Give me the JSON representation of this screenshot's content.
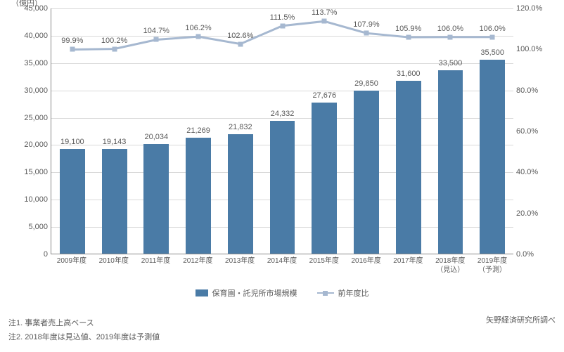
{
  "chart": {
    "type": "bar+line",
    "y_left_title": "（億円）",
    "bar_color": "#4a7ba6",
    "line_color": "#a6b8d0",
    "marker_color": "#a6b8d0",
    "text_color": "#595959",
    "grid_color": "#d9d9d9",
    "background_color": "#ffffff",
    "bar_width": 0.6,
    "label_fontsize": 11,
    "marker_size": 7,
    "line_width": 3,
    "y_left": {
      "min": 0,
      "max": 45000,
      "step": 5000
    },
    "y_right": {
      "min": 0,
      "max": 120,
      "step": 20,
      "suffix": "%"
    },
    "categories": [
      "2009年度",
      "2010年度",
      "2011年度",
      "2012年度",
      "2013年度",
      "2014年度",
      "2015年度",
      "2016年度",
      "2017年度",
      "2018年度",
      "2019年度"
    ],
    "category_sub": [
      "",
      "",
      "",
      "",
      "",
      "",
      "",
      "",
      "",
      "（見込）",
      "（予測）"
    ],
    "bar_values": [
      19100,
      19143,
      20034,
      21269,
      21832,
      24332,
      27676,
      29850,
      31600,
      33500,
      35500
    ],
    "bar_value_labels": [
      "19,100",
      "19,143",
      "20,034",
      "21,269",
      "21,832",
      "24,332",
      "27,676",
      "29,850",
      "31,600",
      "33,500",
      "35,500"
    ],
    "pct_values": [
      99.9,
      100.2,
      104.7,
      106.2,
      102.6,
      111.5,
      113.7,
      107.9,
      105.9,
      106.0,
      106.0
    ],
    "pct_labels": [
      "99.9%",
      "100.2%",
      "104.7%",
      "106.2%",
      "102.6%",
      "111.5%",
      "113.7%",
      "107.9%",
      "105.9%",
      "106.0%",
      "106.0%"
    ]
  },
  "legend": {
    "bar_label": "保育園・託児所市場規模",
    "line_label": "前年度比"
  },
  "notes": {
    "note1": "注1. 事業者売上高ベース",
    "note2": "注2. 2018年度は見込値、2019年度は予測値"
  },
  "source": "矢野経済研究所調べ"
}
